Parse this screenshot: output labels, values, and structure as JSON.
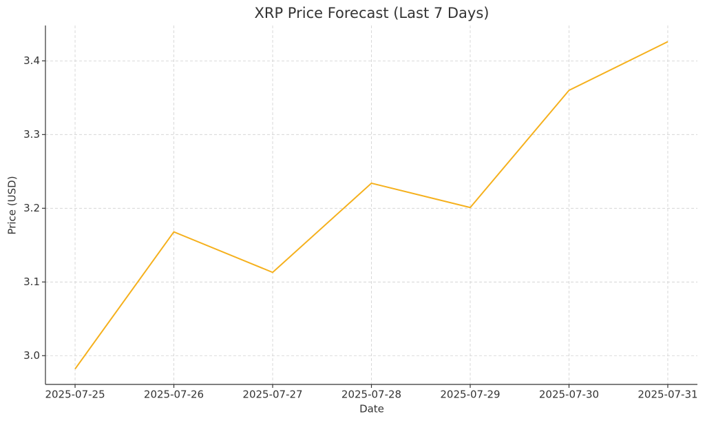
{
  "chart_data": {
    "type": "line",
    "title": "XRP Price Forecast (Last 7 Days)",
    "x_label": "Date",
    "y_label": "Price (USD)",
    "x": [
      "2025-07-25",
      "2025-07-26",
      "2025-07-27",
      "2025-07-28",
      "2025-07-29",
      "2025-07-30",
      "2025-07-31"
    ],
    "values": [
      2.982,
      3.168,
      3.113,
      3.234,
      3.201,
      3.36,
      3.426
    ],
    "color": "#f5b01c",
    "ylim": [
      2.961,
      3.448
    ],
    "yticks": [
      {
        "value": 3,
        "label": "3.0"
      },
      3.1,
      3.2,
      3.3,
      3.4
    ],
    "grid": true
  }
}
